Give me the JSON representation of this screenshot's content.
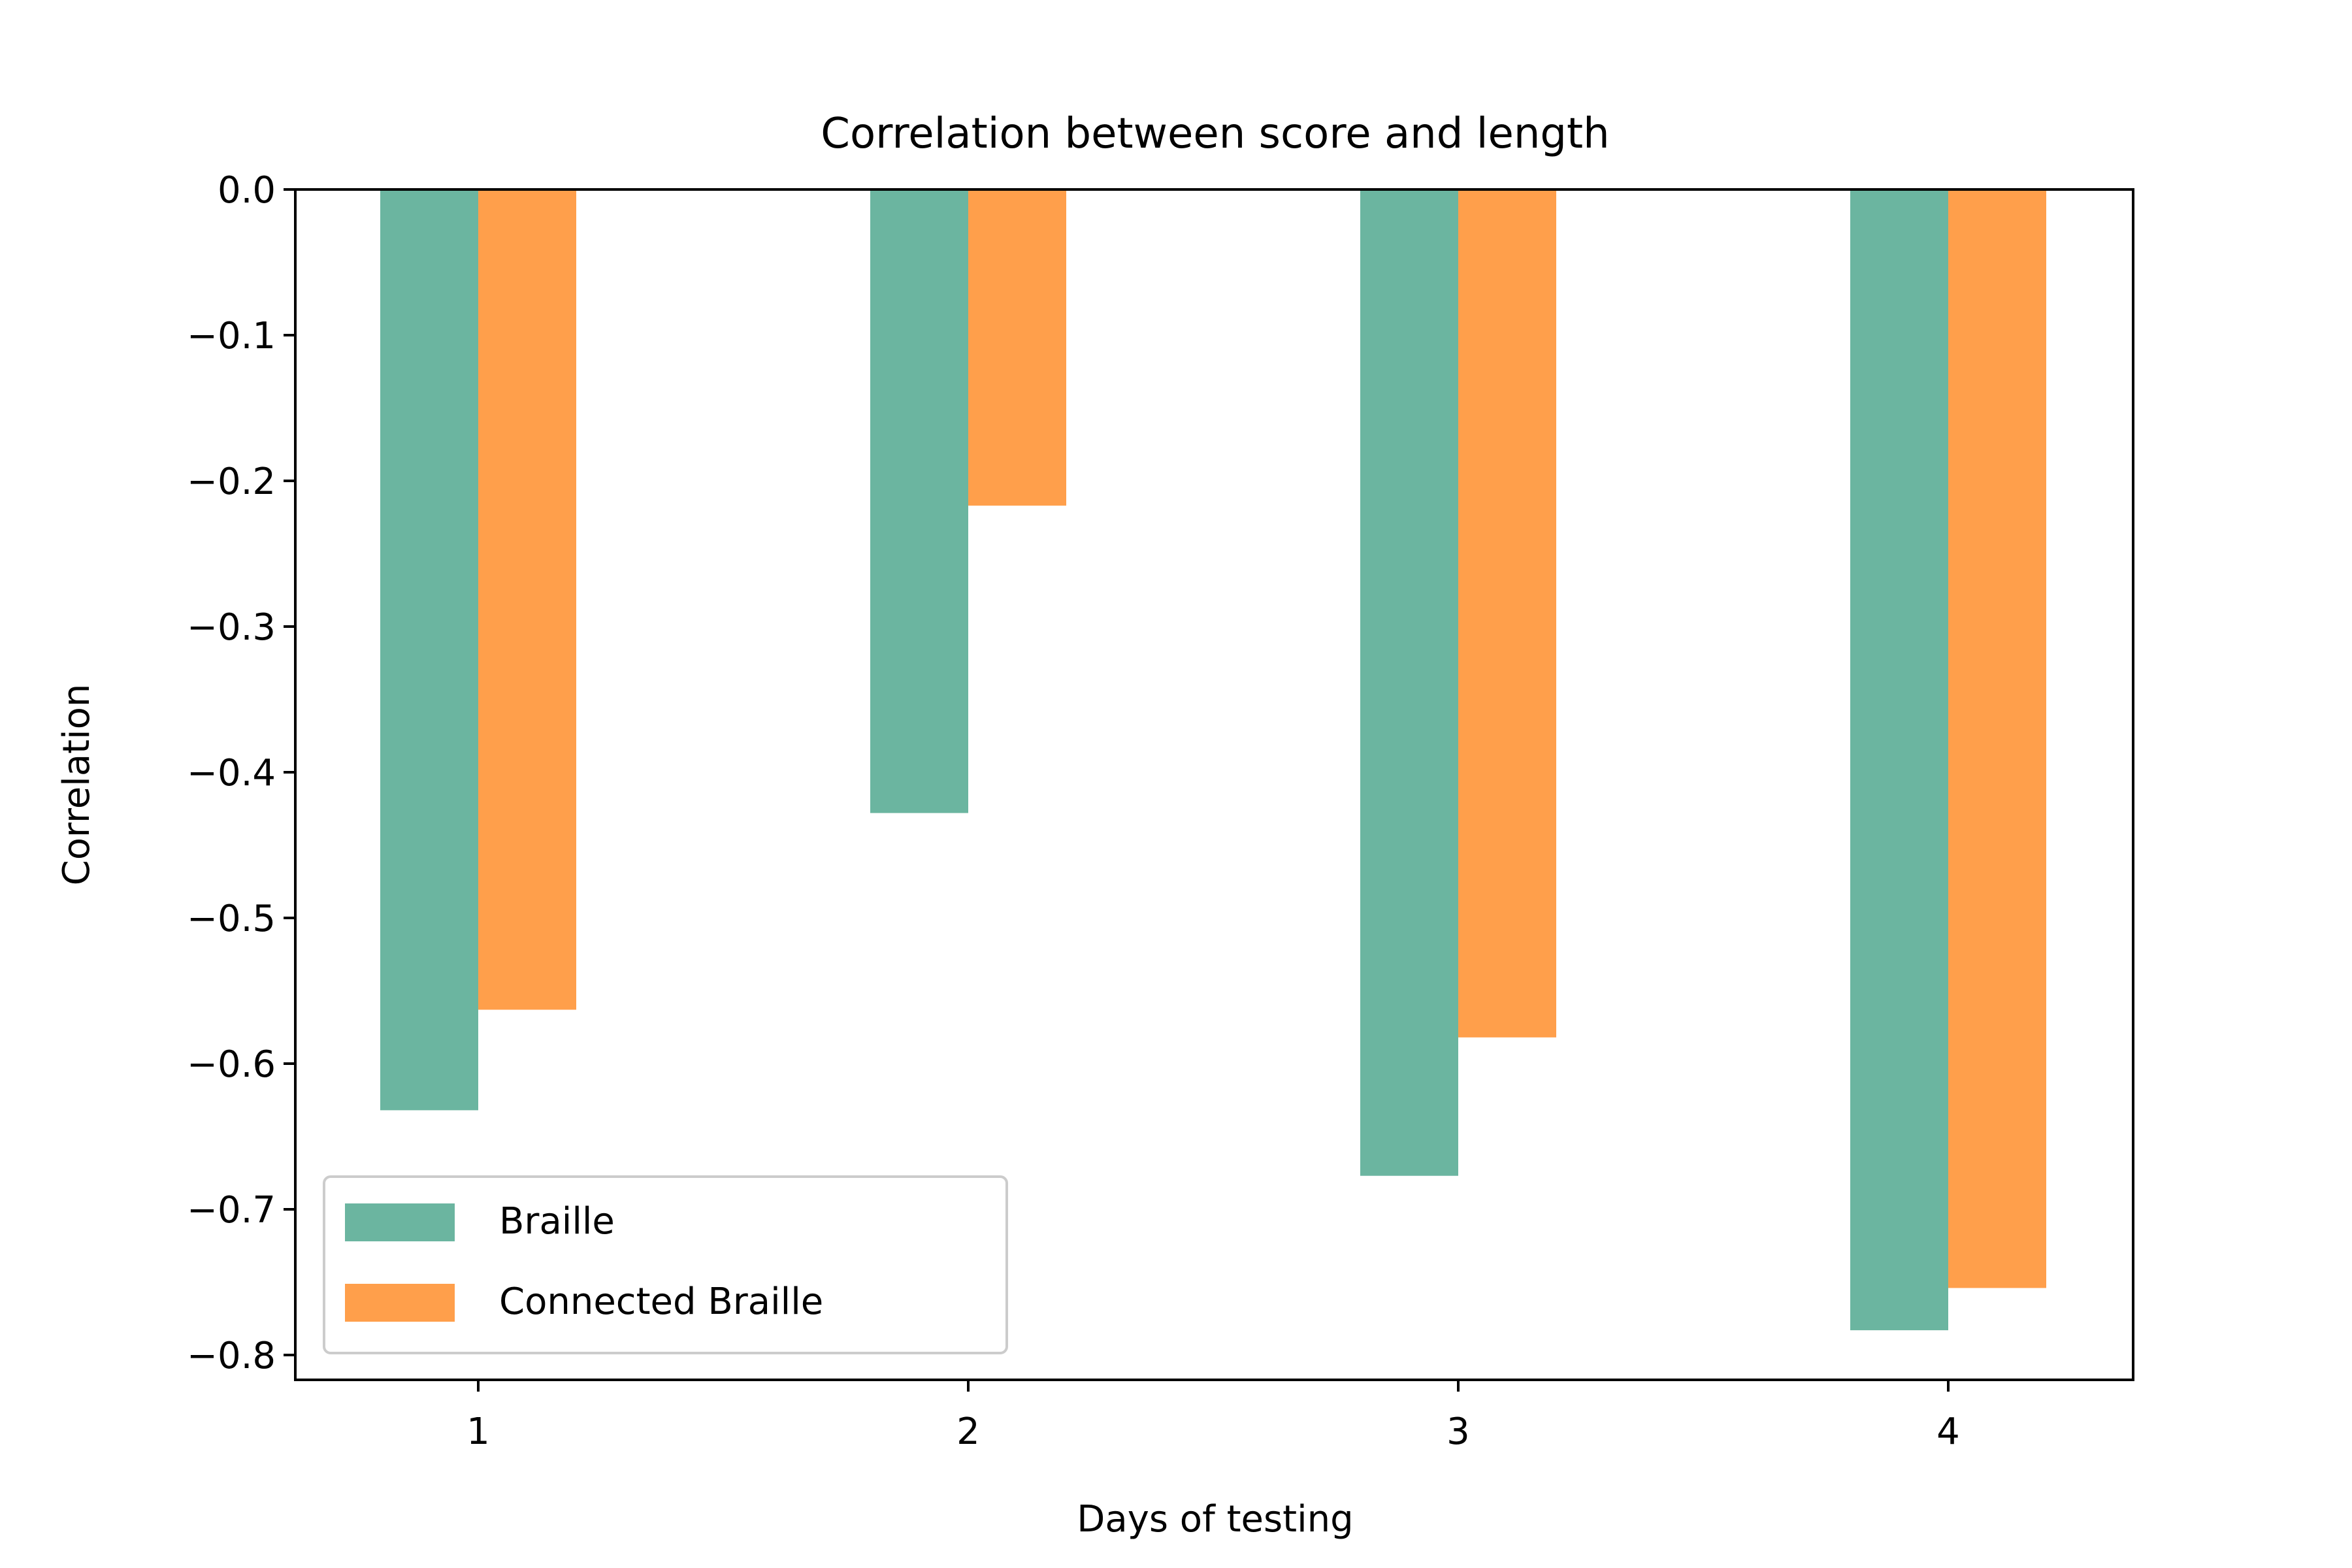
{
  "chart_data": {
    "type": "bar",
    "title": "Correlation between score and length",
    "xlabel": "Days of testing",
    "ylabel": "Correlation",
    "categories": [
      "1",
      "2",
      "3",
      "4"
    ],
    "series": [
      {
        "name": "Braille",
        "color": "#6bb5a0",
        "values": [
          -0.632,
          -0.428,
          -0.677,
          -0.783
        ]
      },
      {
        "name": "Connected Braille",
        "color": "#ff9f4b",
        "values": [
          -0.563,
          -0.217,
          -0.582,
          -0.754
        ]
      }
    ],
    "ylim": [
      -0.822,
      0.0
    ],
    "yticks": [
      "0.0",
      "−0.1",
      "−0.2",
      "−0.3",
      "−0.4",
      "−0.5",
      "−0.6",
      "−0.7",
      "−0.8"
    ],
    "ytick_values": [
      0.0,
      -0.1,
      -0.2,
      -0.3,
      -0.4,
      -0.5,
      -0.6,
      -0.7,
      -0.8
    ],
    "grid": false,
    "legend_position": "lower-left"
  }
}
